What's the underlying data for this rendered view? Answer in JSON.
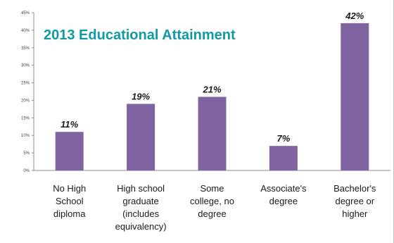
{
  "chart_data": {
    "type": "bar",
    "title": "2013 Educational Attainment",
    "categories": [
      [
        "No High",
        "School",
        "diploma"
      ],
      [
        "High school",
        "graduate",
        "(includes",
        "equivalency)"
      ],
      [
        "Some",
        "college, no",
        "degree"
      ],
      [
        "Associate's",
        "degree"
      ],
      [
        "Bachelor's",
        "degree or",
        "higher"
      ]
    ],
    "values": [
      11,
      19,
      21,
      7,
      42
    ],
    "data_labels": [
      "11%",
      "19%",
      "21%",
      "7%",
      "42%"
    ],
    "ylim": [
      0,
      45
    ],
    "yticks": [
      0,
      5,
      10,
      15,
      20,
      25,
      30,
      35,
      40,
      45
    ],
    "ytick_labels": [
      "0%",
      "5%",
      "10%",
      "15%",
      "20%",
      "25%",
      "30%",
      "35%",
      "40%",
      "45%"
    ],
    "xlabel": "",
    "ylabel": "",
    "grid": false,
    "legend": "none",
    "bar_color": "#8064a2",
    "title_color": "#0f9aa4"
  }
}
